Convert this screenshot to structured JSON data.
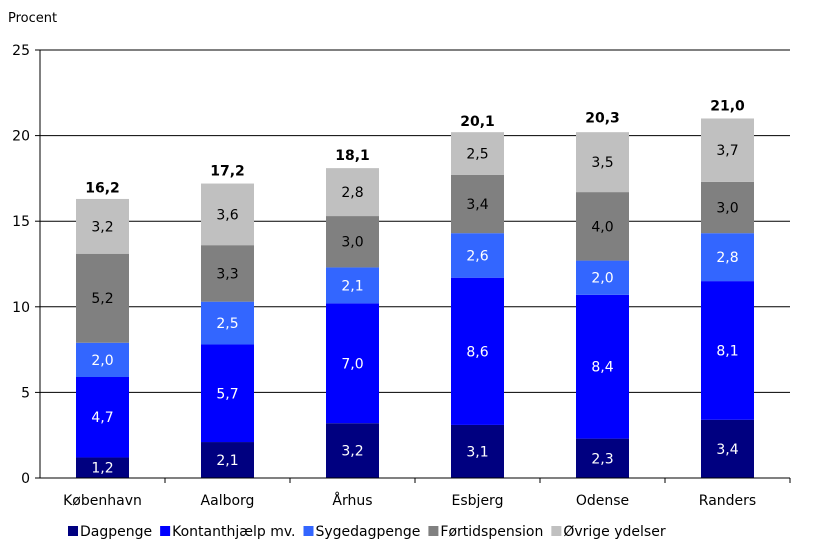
{
  "chart_data": {
    "type": "bar",
    "stacked": true,
    "unit_label": "Procent",
    "categories": [
      "København",
      "Aalborg",
      "Århus",
      "Esbjerg",
      "Odense",
      "Randers"
    ],
    "series": [
      {
        "name": "Dagpenge",
        "color": "#000080",
        "label_color": "#ffffff",
        "values": [
          1.2,
          2.1,
          3.2,
          3.1,
          2.3,
          3.4
        ],
        "labels": [
          "1,2",
          "2,1",
          "3,2",
          "3,1",
          "2,3",
          "3,4"
        ]
      },
      {
        "name": "Kontanthjælp mv.",
        "color": "#0000ff",
        "label_color": "#ffffff",
        "values": [
          4.7,
          5.7,
          7.0,
          8.6,
          8.4,
          8.1
        ],
        "labels": [
          "4,7",
          "5,7",
          "7,0",
          "8,6",
          "8,4",
          "8,1"
        ]
      },
      {
        "name": "Sygedagpenge",
        "color": "#3366ff",
        "label_color": "#ffffff",
        "values": [
          2.0,
          2.5,
          2.1,
          2.6,
          2.0,
          2.8
        ],
        "labels": [
          "2,0",
          "2,5",
          "2,1",
          "2,6",
          "2,0",
          "2,8"
        ]
      },
      {
        "name": "Førtidspension",
        "color": "#808080",
        "label_color": "#000000",
        "values": [
          5.2,
          3.3,
          3.0,
          3.4,
          4.0,
          3.0
        ],
        "labels": [
          "5,2",
          "3,3",
          "3,0",
          "3,4",
          "4,0",
          "3,0"
        ]
      },
      {
        "name": "Øvrige ydelser",
        "color": "#c0c0c0",
        "label_color": "#000000",
        "values": [
          3.2,
          3.6,
          2.8,
          2.5,
          3.5,
          3.7
        ],
        "labels": [
          "3,2",
          "3,6",
          "2,8",
          "2,5",
          "3,5",
          "3,7"
        ]
      }
    ],
    "totals": [
      16.2,
      17.2,
      18.1,
      20.1,
      20.3,
      21.0
    ],
    "total_labels": [
      "16,2",
      "17,2",
      "18,1",
      "20,1",
      "20,3",
      "21,0"
    ],
    "ylim": [
      0,
      25
    ],
    "yticks": [
      0,
      5,
      10,
      15,
      20,
      25
    ],
    "ytick_labels": [
      "0",
      "5",
      "10",
      "15",
      "20",
      "25"
    ],
    "grid": "horizontal",
    "gridline_color": "#000000",
    "legend_position": "bottom"
  }
}
